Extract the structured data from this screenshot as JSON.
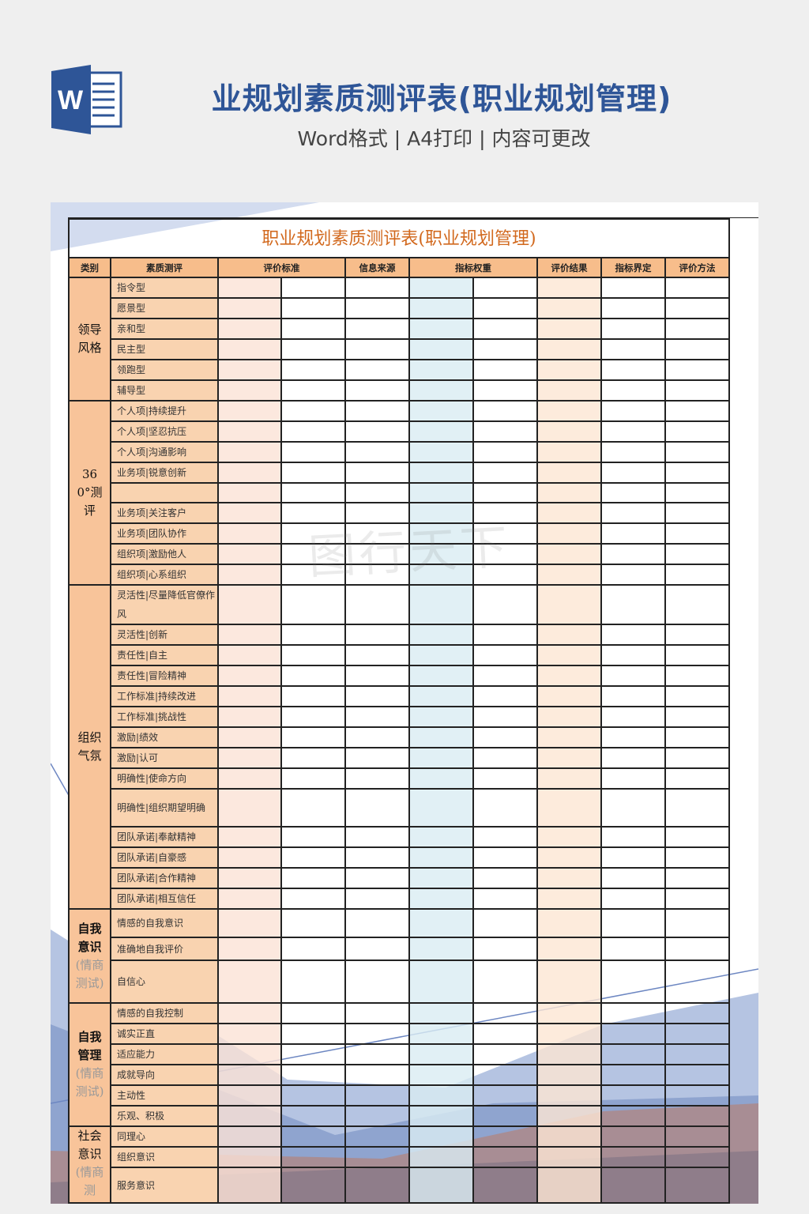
{
  "header": {
    "title": "业规划素质测评表(职业规划管理)",
    "subtitle": "Word格式 | A4打印 | 内容可更改",
    "logo_letter": "W",
    "logo_icon": "word-icon"
  },
  "colors": {
    "title": "#2e5597",
    "doc_title": "#d2691e",
    "header_bg": "#f7bd8b",
    "item_bg": "#f9d3b0",
    "col_pink": "#fbe2d6",
    "col_blue": "#d9ecf2",
    "col_peach": "#fde6d3"
  },
  "document": {
    "title": "职业规划素质测评表(职业规划管理)",
    "columns": [
      "类别",
      "素质测评",
      "评价标准",
      "信息来源",
      "指标权重",
      "评价结果",
      "指标界定",
      "评价方法"
    ],
    "groups": [
      {
        "main": "领导风格",
        "sub": "",
        "items": [
          "指令型",
          "愿景型",
          "亲和型",
          "民主型",
          "领跑型",
          "辅导型"
        ]
      },
      {
        "main": "360°测评",
        "sub": "",
        "items": [
          "个人项|持续提升",
          "个人项|坚忍抗压",
          "个人项|沟通影响",
          "业务项|锐意创新",
          "",
          "业务项|关注客户",
          "业务项|团队协作",
          "组织项|激励他人",
          "组织项|心系组织"
        ]
      },
      {
        "main": "组织气氛",
        "sub": "",
        "items": [
          "灵活性|尽量降低官僚作风",
          "灵活性|创新",
          "责任性|自主",
          "责任性|冒险精神",
          "工作标准|持续改进",
          "工作标准|挑战性",
          "激励|绩效",
          "激励|认可",
          "明确性|使命方向",
          "明确性|组织期望明确",
          "团队承诺|奉献精神",
          "团队承诺|自豪感",
          "团队承诺|合作精神",
          "团队承诺|相互信任"
        ]
      },
      {
        "main": "自我意识",
        "sub": "(情商测试)",
        "items": [
          "情感的自我意识",
          "准确地自我评价",
          "自信心"
        ]
      },
      {
        "main": "自我管理",
        "sub": "(情商测试)",
        "items": [
          "情感的自我控制",
          "诚实正直",
          "适应能力",
          "成就导向",
          "主动性",
          "乐观、积极"
        ]
      },
      {
        "main": "社会意识",
        "sub": "(情商测",
        "items": [
          "同理心",
          "组织意识",
          "服务意识"
        ]
      }
    ]
  },
  "watermark": "图行天下"
}
